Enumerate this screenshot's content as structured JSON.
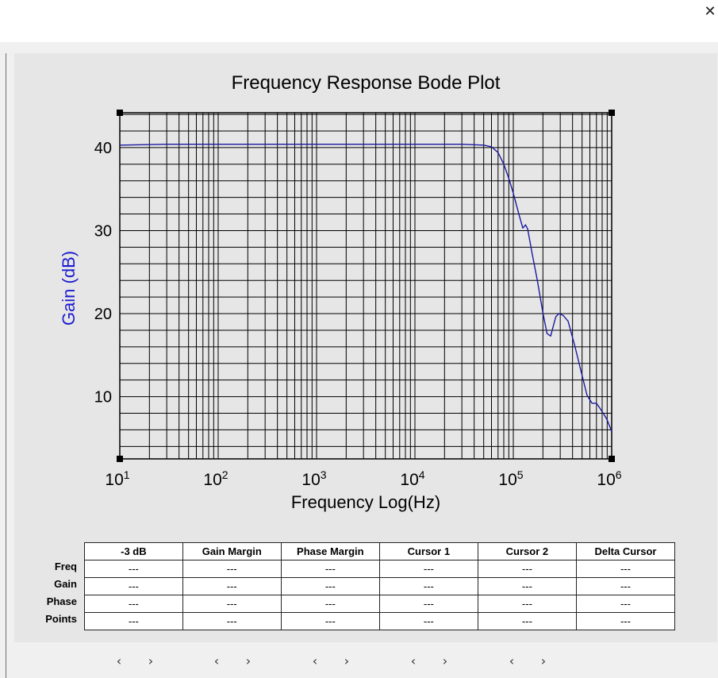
{
  "window": {
    "close_label": "✕"
  },
  "chart_data": {
    "type": "line",
    "title": "Frequency Response Bode Plot",
    "xlabel": "Frequency Log(Hz)",
    "ylabel": "Gain (dB)",
    "x_scale": "log",
    "xlim": [
      10,
      1000000
    ],
    "ylim": [
      2.5,
      44.2
    ],
    "x_tick_labels": [
      "10^1",
      "10^2",
      "10^3",
      "10^4",
      "10^5",
      "10^6"
    ],
    "y_ticks": [
      10,
      20,
      30,
      40
    ],
    "grid": true,
    "colors": {
      "line": "#1a1aa0",
      "ylabel": "#1a1ad0",
      "grid": "#000000"
    },
    "series": [
      {
        "x": [
          10,
          30,
          100,
          1000,
          10000,
          30000,
          50000,
          60000,
          70000,
          80000,
          90000,
          100000,
          115000,
          125000,
          133000,
          140000,
          155000,
          175000,
          200000,
          220000,
          240000,
          255000,
          270000,
          290000,
          320000,
          360000,
          420000,
          480000,
          560000,
          630000,
          700000,
          760000,
          830000,
          900000,
          1000000
        ],
        "y": [
          40.3,
          40.4,
          40.4,
          40.4,
          40.4,
          40.4,
          40.3,
          40.1,
          39.4,
          38.0,
          36.3,
          34.5,
          31.8,
          30.3,
          30.7,
          30.2,
          27.3,
          24.1,
          20.1,
          17.6,
          17.3,
          18.5,
          19.6,
          20.0,
          19.8,
          19.1,
          16.2,
          13.4,
          10.2,
          9.2,
          9.2,
          8.6,
          7.9,
          7.2,
          5.8
        ]
      }
    ]
  },
  "results": {
    "columns": [
      "-3 dB",
      "Gain Margin",
      "Phase Margin",
      "Cursor 1",
      "Cursor 2",
      "Delta Cursor"
    ],
    "row_labels": [
      "Freq",
      "Gain",
      "Phase",
      "Points"
    ],
    "rows": [
      [
        "---",
        "---",
        "---",
        "---",
        "---",
        "---"
      ],
      [
        "---",
        "---",
        "---",
        "---",
        "---",
        "---"
      ],
      [
        "---",
        "---",
        "---",
        "---",
        "---",
        "---"
      ],
      [
        "---",
        "---",
        "---",
        "---",
        "---",
        "---"
      ]
    ]
  },
  "nav": {
    "prev_label": "‹",
    "next_label": "›"
  }
}
